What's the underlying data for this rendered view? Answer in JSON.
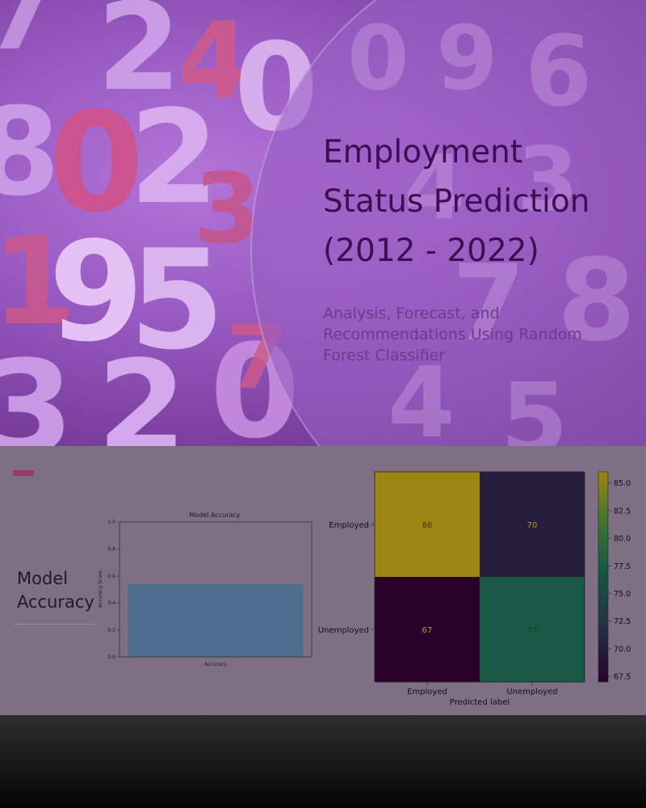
{
  "slide": {
    "title_lines": [
      "Employment",
      "Status Prediction",
      "(2012 - 2022)"
    ],
    "subtitle_lines": [
      "Analysis, Forecast, and",
      "Recommendations Using Random",
      "Forest Classifier"
    ],
    "section_title_lines": [
      "Model",
      "Accuracy"
    ]
  },
  "colors": {
    "title": "#3d0e52",
    "subtitle": "#6e3a8c",
    "accent": "#9b3a6a",
    "panel": "#7f6f84"
  },
  "chart_data": [
    {
      "type": "bar",
      "title": "Model Accuracy",
      "ylabel": "Accuracy Score",
      "xlabel": "",
      "categories": [
        "Accuracy"
      ],
      "values": [
        0.54
      ],
      "ylim": [
        0,
        1.0
      ],
      "yticks": [
        "0.0",
        "0.2",
        "0.4",
        "0.6",
        "0.8",
        "1.0"
      ],
      "grid": false
    },
    {
      "type": "heatmap",
      "title": "",
      "xlabel": "Predicted label",
      "ylabel": "",
      "x_categories": [
        "Employed",
        "Unemployed"
      ],
      "y_categories": [
        "Employed",
        "Unemployed"
      ],
      "matrix": [
        [
          86,
          70
        ],
        [
          67,
          77
        ]
      ],
      "colorbar_ticks": [
        "85.0",
        "82.5",
        "80.0",
        "77.5",
        "75.0",
        "72.5",
        "70.0",
        "67.5"
      ],
      "colorbar_range": [
        67,
        86
      ],
      "colormap": "viridis"
    }
  ]
}
